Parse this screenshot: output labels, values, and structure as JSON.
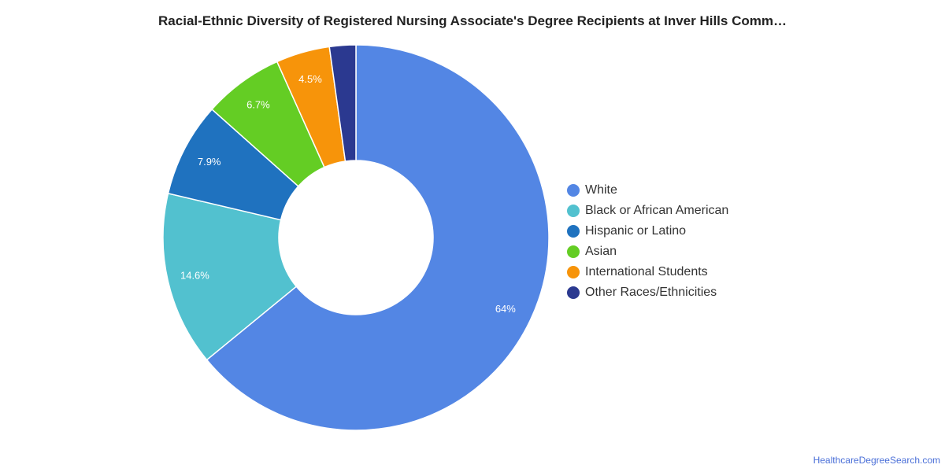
{
  "chart_data": {
    "type": "pie",
    "title": "Racial-Ethnic Diversity of Registered Nursing Associate's Degree Recipients at Inver Hills Comm…",
    "categories": [
      "White",
      "Black or African American",
      "Hispanic or Latino",
      "Asian",
      "International Students",
      "Other Races/Ethnicities"
    ],
    "values": [
      64,
      14.6,
      7.9,
      6.7,
      4.5,
      2.2
    ],
    "labels": [
      "64%",
      "14.6%",
      "7.9%",
      "6.7%",
      "4.5%",
      ""
    ],
    "colors": [
      "#5386e4",
      "#52c1cf",
      "#1f72bf",
      "#64cd24",
      "#f7940a",
      "#2b3990"
    ],
    "legend_position": "right",
    "donut": true
  },
  "source": "HealthcareDegreeSearch.com"
}
